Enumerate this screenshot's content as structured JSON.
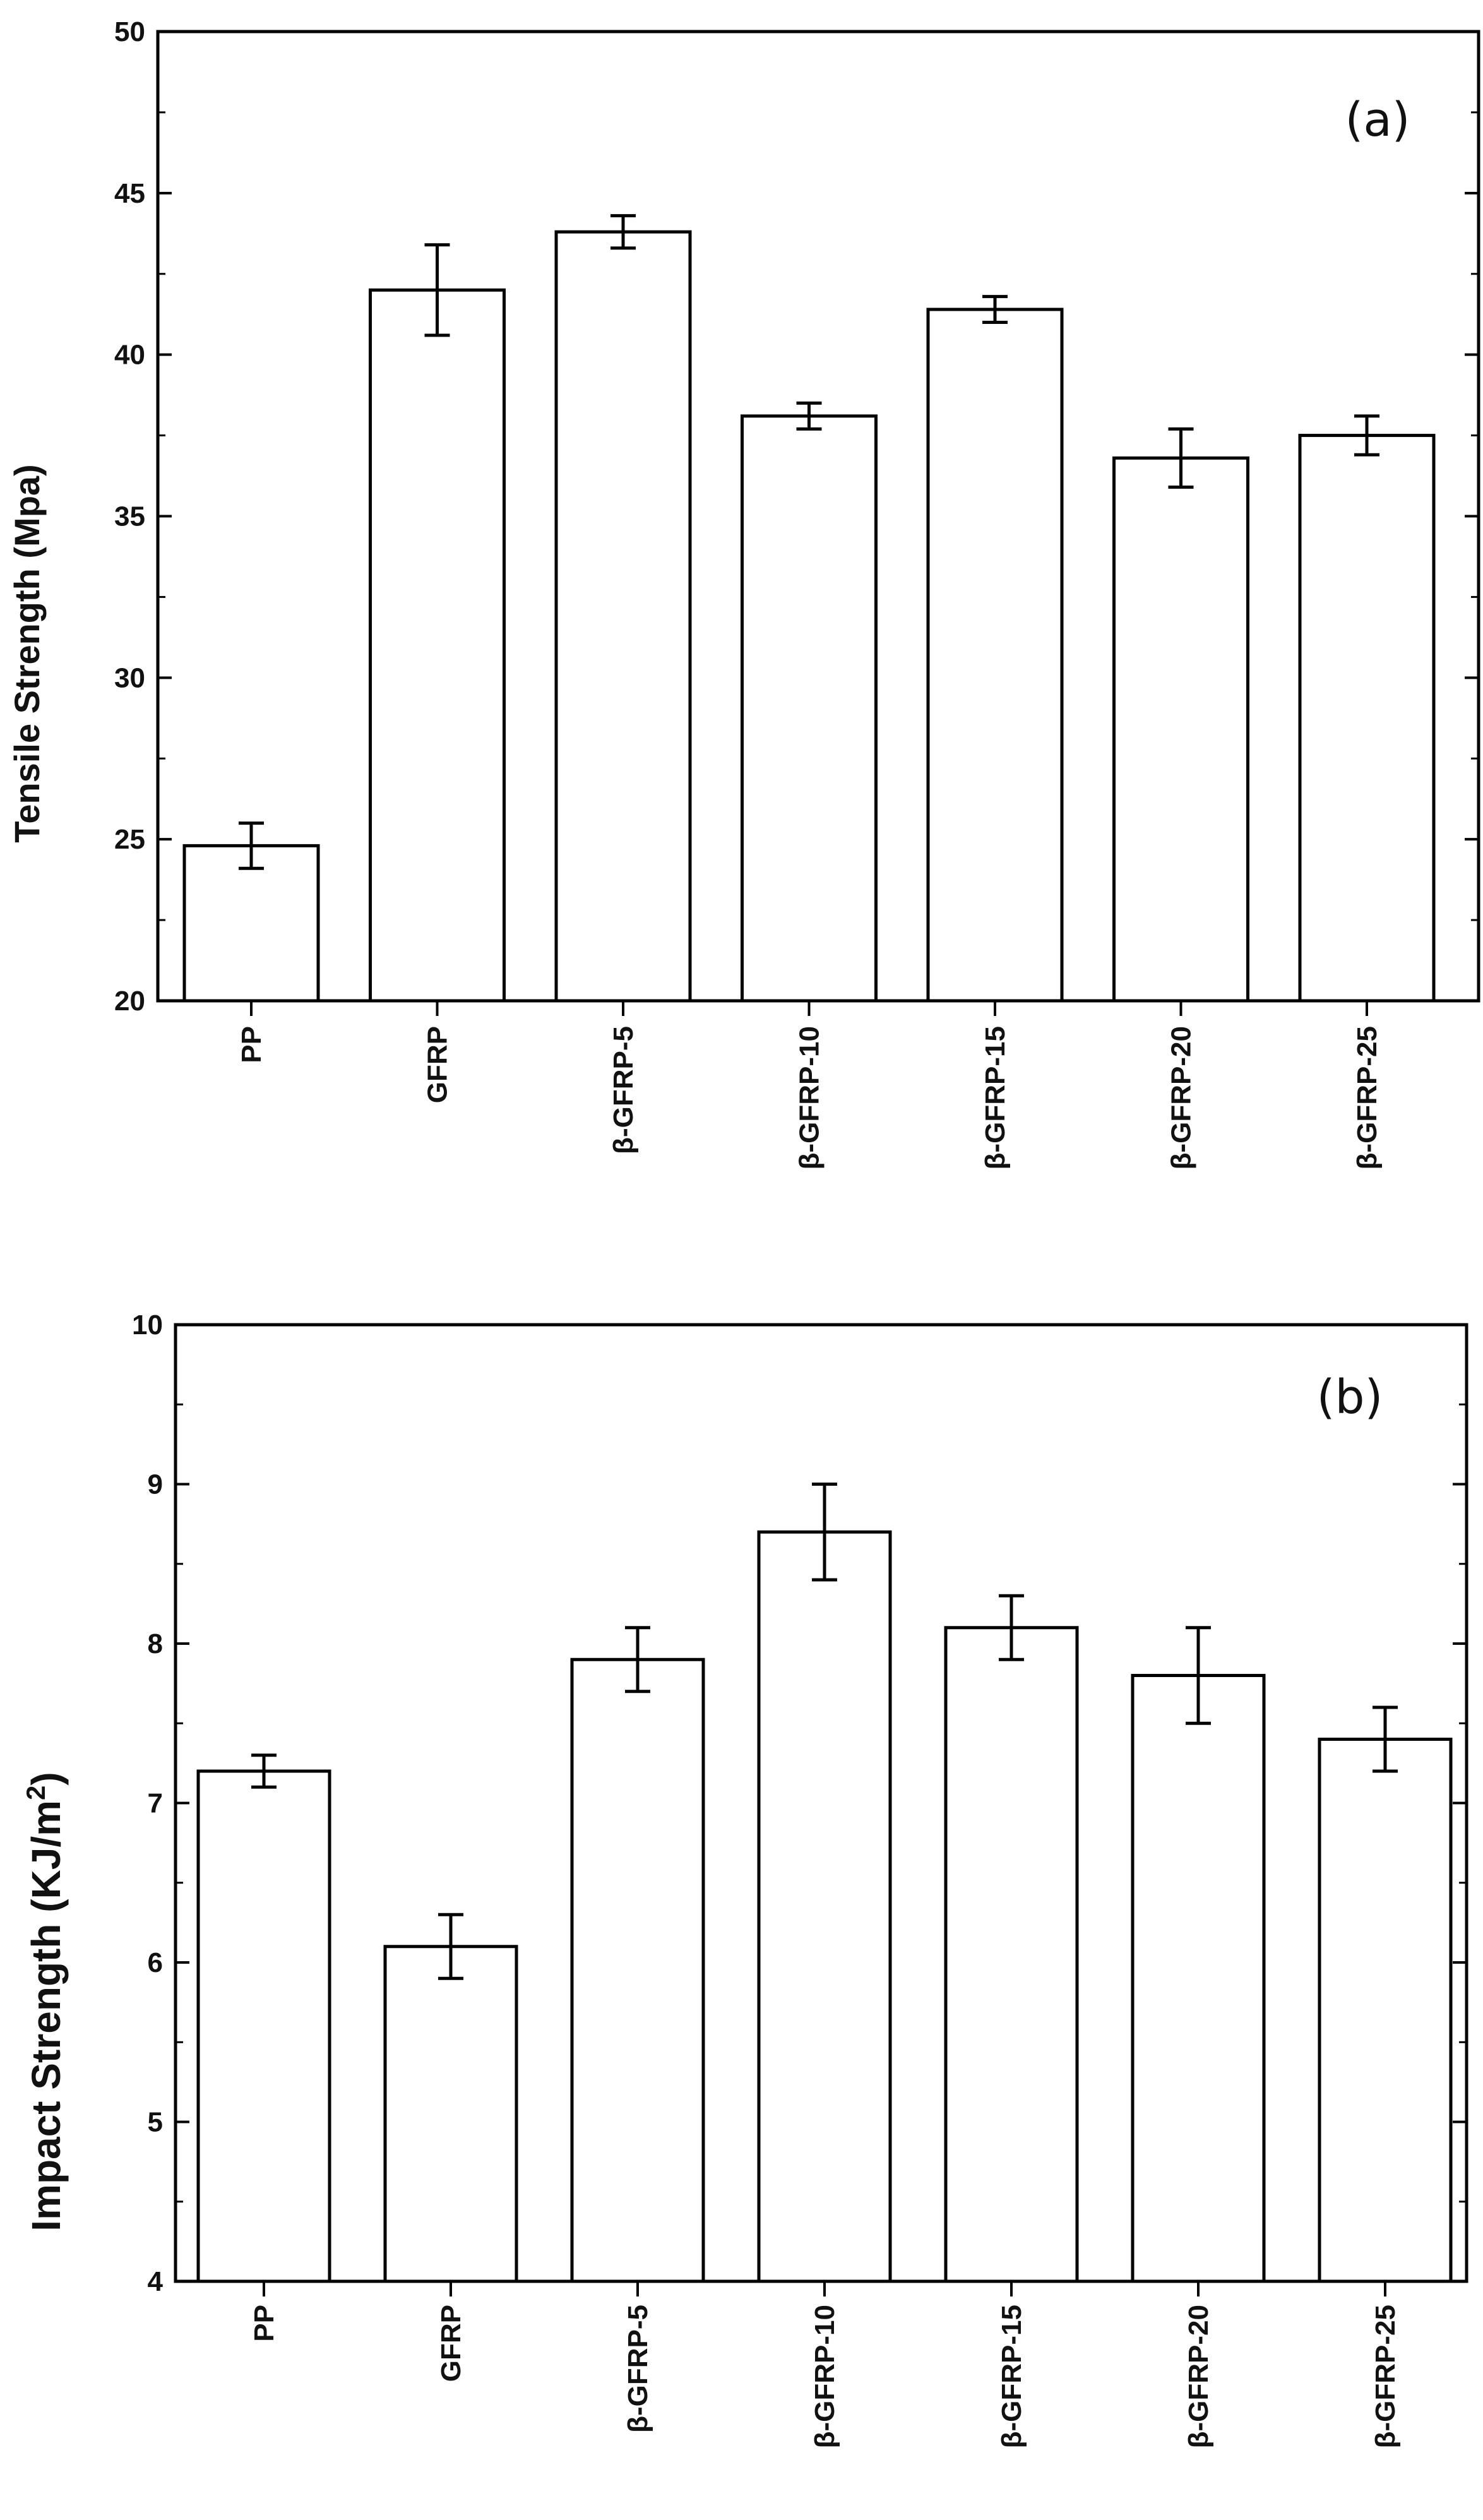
{
  "chart_data": [
    {
      "type": "bar",
      "panel_label": "(a)",
      "title": "",
      "xlabel": "",
      "ylabel": "Tensile Strength (Mpa)",
      "ylim": [
        20,
        50
      ],
      "yticks": [
        "20",
        "25",
        "30",
        "35",
        "40",
        "45",
        "50"
      ],
      "categories": [
        "PP",
        "GFRP",
        "β-GFRP-5",
        "β-GFRP-10",
        "β-GFRP-15",
        "β-GFRP-20",
        "β-GFRP-25"
      ],
      "values": [
        24.8,
        42.0,
        43.8,
        38.1,
        41.4,
        36.8,
        37.5
      ],
      "errors": [
        0.7,
        1.4,
        0.5,
        0.4,
        0.4,
        0.9,
        0.6
      ],
      "grid": false,
      "bar_color": "#ffffff",
      "edge_color": "#000000"
    },
    {
      "type": "bar",
      "panel_label": "(b)",
      "title": "",
      "xlabel": "",
      "ylabel": "Impact Strength (KJ/m",
      "ylabel_sup": "2",
      "ylabel_end": ")",
      "ylim": [
        4,
        10
      ],
      "yticks": [
        "4",
        "5",
        "6",
        "7",
        "8",
        "9",
        "10"
      ],
      "categories": [
        "PP",
        "GFRP",
        "β-GFRP-5",
        "β-GFRP-10",
        "β-GFRP-15",
        "β-GFRP-20",
        "β-GFRP-25"
      ],
      "values": [
        7.2,
        6.1,
        7.9,
        8.7,
        8.1,
        7.8,
        7.4
      ],
      "errors": [
        0.1,
        0.2,
        0.2,
        0.3,
        0.2,
        0.3,
        0.2
      ],
      "grid": false,
      "bar_color": "#ffffff",
      "edge_color": "#000000"
    }
  ]
}
